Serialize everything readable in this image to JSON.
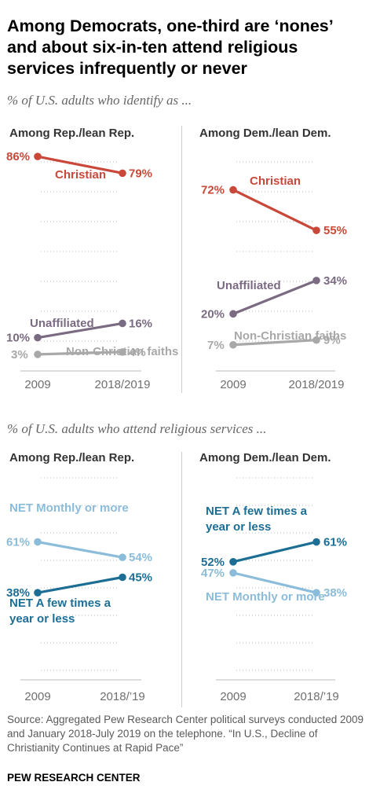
{
  "title": "Among Democrats, one-third are ‘nones’ and about six-in-ten attend religious services infrequently or never",
  "subtitle_identify": "% of U.S. adults who identify as ...",
  "subtitle_attend": "% of U.S. adults who attend religious services ...",
  "source": "Source: Aggregated Pew Research Center political surveys conducted 2009 and January 2018-July 2019 on the telephone. “In U.S., Decline of Christianity Continues at Rapid Pace”",
  "credit": "PEW RESEARCH CENTER",
  "colors": {
    "christian": "#c9483a",
    "unaffiliated": "#7a6b82",
    "non_christian": "#a8a8a8",
    "monthly": "#8bbcd9",
    "few_times": "#1c6e94"
  },
  "chart_data": [
    {
      "type": "line",
      "title": "Among Rep./lean Rep.",
      "categories": [
        "2009",
        "2018/2019"
      ],
      "ylim": [
        0,
        90
      ],
      "grid": true,
      "series": [
        {
          "name": "Christian",
          "values": [
            86,
            79
          ],
          "labels": [
            "86%",
            "79%"
          ],
          "color": "#c9483a"
        },
        {
          "name": "Unaffiliated",
          "values": [
            10,
            16
          ],
          "labels": [
            "10%",
            "16%"
          ],
          "color": "#7a6b82"
        },
        {
          "name": "Non-Christian faiths",
          "values": [
            3,
            4
          ],
          "labels": [
            "3%",
            "4%"
          ],
          "color": "#a8a8a8"
        }
      ]
    },
    {
      "type": "line",
      "title": "Among Dem./lean Dem.",
      "categories": [
        "2009",
        "2018/2019"
      ],
      "ylim": [
        0,
        90
      ],
      "grid": true,
      "series": [
        {
          "name": "Christian",
          "values": [
            72,
            55
          ],
          "labels": [
            "72%",
            "55%"
          ],
          "color": "#c9483a"
        },
        {
          "name": "Unaffiliated",
          "values": [
            20,
            34
          ],
          "labels": [
            "20%",
            "34%"
          ],
          "color": "#7a6b82"
        },
        {
          "name": "Non-Christian faiths",
          "values": [
            7,
            9
          ],
          "labels": [
            "7%",
            "9%"
          ],
          "color": "#a8a8a8"
        }
      ]
    },
    {
      "type": "line",
      "title": "Among Rep./lean Rep.",
      "categories": [
        "2009",
        "2018/’19"
      ],
      "ylim": [
        0,
        90
      ],
      "grid": true,
      "series": [
        {
          "name": "NET Monthly or more",
          "values": [
            61,
            54
          ],
          "labels": [
            "61%",
            "54%"
          ],
          "color": "#8bbcd9"
        },
        {
          "name": "NET A few times a year or less",
          "values": [
            38,
            45
          ],
          "labels": [
            "38%",
            "45%"
          ],
          "color": "#1c6e94"
        }
      ]
    },
    {
      "type": "line",
      "title": "Among Dem./lean Dem.",
      "categories": [
        "2009",
        "2018/’19"
      ],
      "ylim": [
        0,
        90
      ],
      "grid": true,
      "series": [
        {
          "name": "NET A few times a year or less",
          "values": [
            52,
            61
          ],
          "labels": [
            "52%",
            "61%"
          ],
          "color": "#1c6e94"
        },
        {
          "name": "NET Monthly or more",
          "values": [
            47,
            38
          ],
          "labels": [
            "47%",
            "38%"
          ],
          "color": "#8bbcd9"
        }
      ]
    }
  ]
}
